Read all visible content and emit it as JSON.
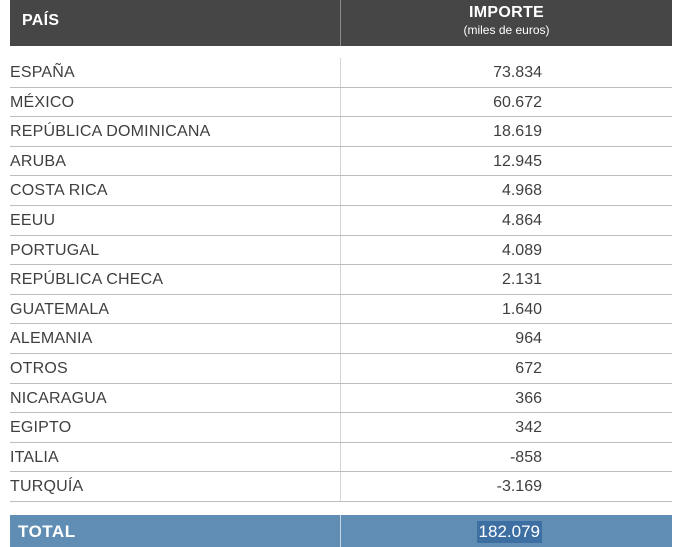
{
  "header": {
    "country_label": "PAÍS",
    "amount_label": "IMPORTE",
    "amount_unit": "(miles de euros)"
  },
  "rows": [
    {
      "country": "ESPAÑA",
      "amount": "73.834"
    },
    {
      "country": "MÉXICO",
      "amount": "60.672"
    },
    {
      "country": "REPÚBLICA DOMINICANA",
      "amount": "18.619"
    },
    {
      "country": "ARUBA",
      "amount": "12.945"
    },
    {
      "country": "COSTA RICA",
      "amount": "4.968"
    },
    {
      "country": "EEUU",
      "amount": "4.864"
    },
    {
      "country": "PORTUGAL",
      "amount": "4.089"
    },
    {
      "country": "REPÚBLICA CHECA",
      "amount": "2.131"
    },
    {
      "country": "GUATEMALA",
      "amount": "1.640"
    },
    {
      "country": "ALEMANIA",
      "amount": "964"
    },
    {
      "country": "OTROS",
      "amount": "672"
    },
    {
      "country": "NICARAGUA",
      "amount": "366"
    },
    {
      "country": "EGIPTO",
      "amount": "342"
    },
    {
      "country": "ITALIA",
      "amount": "-858"
    },
    {
      "country": "TURQUÍA",
      "amount": "-3.169"
    }
  ],
  "total": {
    "label": "TOTAL",
    "amount": "182.079"
  },
  "colors": {
    "header_bg": "#464646",
    "total_bg": "#5f8db4",
    "total_value_highlight": "#3d6fa3"
  }
}
